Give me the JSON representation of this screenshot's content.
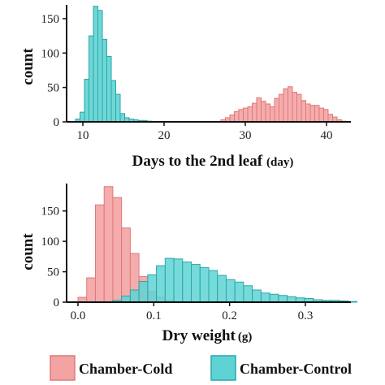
{
  "colors": {
    "cold_fill": "#f4a3a3",
    "cold_stroke": "#e07878",
    "control_fill": "#5fd3d3",
    "control_stroke": "#2aa7a7",
    "axis": "#111111"
  },
  "legend": {
    "position": "bottom",
    "items": [
      {
        "label": "Chamber-Cold",
        "series": "cold"
      },
      {
        "label": "Chamber-Control",
        "series": "control"
      }
    ]
  },
  "chart_data": [
    {
      "type": "bar",
      "xlabel": "Days to the 2nd leaf",
      "xunit": "(day)",
      "ylabel": "count",
      "xlim": [
        8,
        43
      ],
      "ylim": [
        0,
        170
      ],
      "xticks": [
        10,
        20,
        30,
        40
      ],
      "yticks": [
        0,
        50,
        100,
        150
      ],
      "bin_width": 0.55,
      "grid": false,
      "series": [
        {
          "key": "control",
          "x0": 9.1,
          "values": [
            4,
            14,
            62,
            125,
            168,
            162,
            120,
            95,
            60,
            40,
            12,
            6,
            4,
            3,
            2,
            2,
            1
          ]
        },
        {
          "key": "cold",
          "x0": 27.0,
          "values": [
            3,
            6,
            10,
            15,
            18,
            20,
            22,
            27,
            35,
            30,
            26,
            22,
            34,
            40,
            48,
            51,
            43,
            40,
            31,
            26,
            24,
            24,
            20,
            18,
            11,
            7,
            3,
            1
          ]
        }
      ]
    },
    {
      "type": "bar",
      "xlabel": "Dry weight",
      "xunit": "(g)",
      "ylabel": "count",
      "xlim": [
        -0.015,
        0.36
      ],
      "ylim": [
        0,
        195
      ],
      "xticks": [
        0.0,
        0.1,
        0.2,
        0.3
      ],
      "yticks": [
        0,
        50,
        100,
        150
      ],
      "bin_width": 0.0115,
      "grid": false,
      "series": [
        {
          "key": "cold",
          "x0": 0.0,
          "values": [
            8,
            40,
            160,
            190,
            172,
            122,
            80,
            42,
            18,
            8,
            3,
            1
          ]
        },
        {
          "key": "control",
          "x0": 0.046,
          "values": [
            3,
            10,
            20,
            34,
            45,
            60,
            72,
            71,
            66,
            62,
            57,
            52,
            44,
            37,
            33,
            27,
            20,
            15,
            13,
            11,
            9,
            7,
            6,
            4,
            3,
            3,
            2,
            1
          ]
        }
      ]
    }
  ]
}
